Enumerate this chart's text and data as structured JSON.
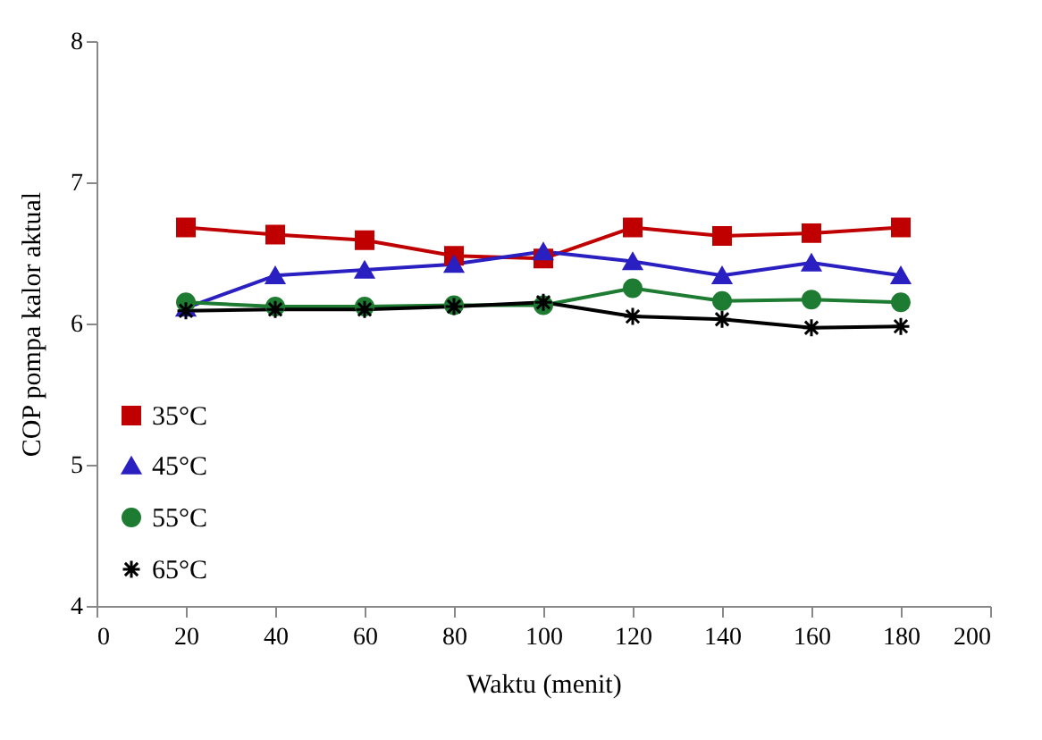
{
  "chart_data": {
    "type": "line",
    "xlabel": "Waktu (menit)",
    "ylabel": "COP pompa kalor aktual",
    "x": [
      20,
      40,
      60,
      80,
      100,
      120,
      140,
      160,
      180
    ],
    "series": [
      {
        "name": "35°C",
        "color": "#c00000",
        "marker": "square",
        "values": [
          6.68,
          6.63,
          6.59,
          6.48,
          6.46,
          6.68,
          6.62,
          6.64,
          6.68
        ]
      },
      {
        "name": "45°C",
        "color": "#2a1fc0",
        "marker": "triangle",
        "values": [
          6.11,
          6.34,
          6.38,
          6.42,
          6.51,
          6.44,
          6.34,
          6.43,
          6.34
        ]
      },
      {
        "name": "55°C",
        "color": "#1e7b32",
        "marker": "circle",
        "values": [
          6.15,
          6.12,
          6.12,
          6.13,
          6.13,
          6.25,
          6.16,
          6.17,
          6.15
        ]
      },
      {
        "name": "65°C",
        "color": "#000000",
        "marker": "cross",
        "values": [
          6.09,
          6.1,
          6.1,
          6.12,
          6.15,
          6.05,
          6.03,
          5.97,
          5.98
        ]
      }
    ],
    "xlim": [
      0,
      200
    ],
    "xticks": [
      0,
      20,
      40,
      60,
      80,
      100,
      120,
      140,
      160,
      180,
      200
    ],
    "ylim": [
      4,
      8
    ],
    "yticks": [
      4,
      5,
      6,
      7,
      8
    ],
    "grid": false,
    "legend": "bottom left",
    "line_style": "solid"
  }
}
